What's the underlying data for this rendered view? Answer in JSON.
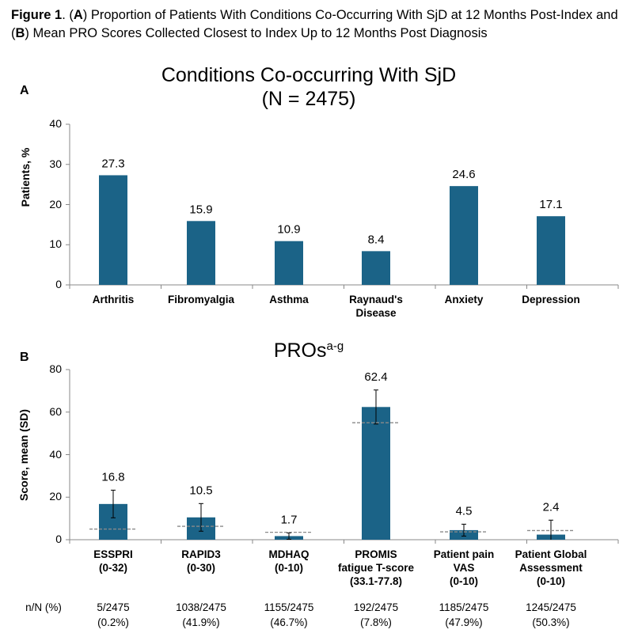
{
  "caption": {
    "fig_label": "Figure 1",
    "p1": ". (",
    "a": "A",
    "p2": ") Proportion of Patients With Conditions Co-Occurring With SjD at 12 Months Post-Index and (",
    "b": "B",
    "p3": ") Mean PRO Scores Collected Closest to Index Up to 12 Months Post Diagnosis"
  },
  "colors": {
    "bar": "#1b6387",
    "axis": "#888888",
    "ref": "#8a8a8a"
  },
  "chart_data": [
    {
      "type": "bar",
      "panel": "A",
      "title_line1": "Conditions Co-occurring With SjD",
      "title_line2": "(N = 2475)",
      "ylabel": "Patients, %",
      "ylim": [
        0,
        40
      ],
      "yticks": [
        "0",
        "10",
        "20",
        "30",
        "40"
      ],
      "categories": [
        [
          "Arthritis"
        ],
        [
          "Fibromyalgia"
        ],
        [
          "Asthma"
        ],
        [
          "Raynaud's",
          "Disease"
        ],
        [
          "Anxiety"
        ],
        [
          "Depression"
        ]
      ],
      "values": [
        27.3,
        15.9,
        10.9,
        8.4,
        24.6,
        17.1
      ],
      "value_labels": [
        "27.3",
        "15.9",
        "10.9",
        "8.4",
        "24.6",
        "17.1"
      ]
    },
    {
      "type": "bar",
      "panel": "B",
      "title": "PROs",
      "title_sup": "a-g",
      "ylabel": "Score, mean (SD)",
      "ylim": [
        0,
        80
      ],
      "yticks": [
        "0",
        "20",
        "40",
        "60",
        "80"
      ],
      "categories": [
        [
          "ESSPRI",
          "(0-32)"
        ],
        [
          "RAPID3",
          "(0-30)"
        ],
        [
          "MDHAQ",
          "(0-10)"
        ],
        [
          "PROMIS",
          "fatigue T-score",
          "(33.1-77.8)"
        ],
        [
          "Patient pain",
          "VAS",
          "(0-10)"
        ],
        [
          "Patient Global",
          "Assessment",
          "(0-10)"
        ]
      ],
      "values": [
        16.8,
        10.5,
        1.7,
        62.4,
        4.5,
        2.4
      ],
      "sd": [
        6.5,
        6.5,
        1.5,
        8.0,
        2.8,
        6.8
      ],
      "reference_lines": [
        5,
        6.3,
        3.5,
        55,
        3.7,
        4.3
      ],
      "value_labels": [
        "16.8",
        "10.5",
        "1.7",
        "62.4",
        "4.5",
        "2.4"
      ],
      "nn_header": "n/N (%)",
      "nn": [
        [
          "5/2475",
          "(0.2%)"
        ],
        [
          "1038/2475",
          "(41.9%)"
        ],
        [
          "1155/2475",
          "(46.7%)"
        ],
        [
          "192/2475",
          "(7.8%)"
        ],
        [
          "1185/2475",
          "(47.9%)"
        ],
        [
          "1245/2475",
          "(50.3%)"
        ]
      ]
    }
  ]
}
